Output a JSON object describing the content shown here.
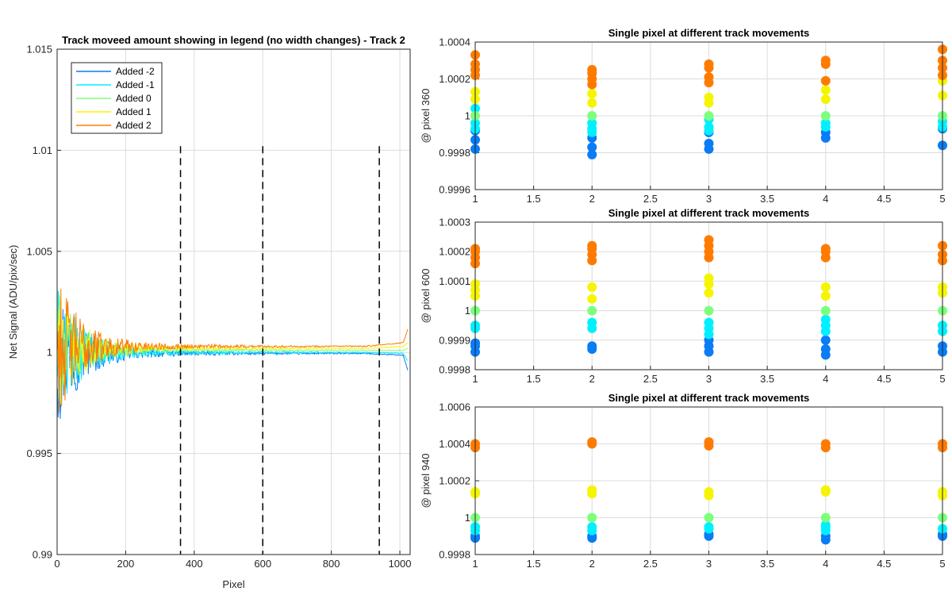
{
  "chart_data": [
    {
      "type": "line",
      "title": "Track moveed amount showing in legend (no width changes) - Track 2",
      "xlabel": "Pixel",
      "ylabel": "Net Signal (ADU/pix/sec)",
      "xlim": [
        0,
        1030
      ],
      "ylim": [
        0.99,
        1.015
      ],
      "x_ticks": [
        0,
        200,
        400,
        600,
        800,
        1000
      ],
      "y_ticks": [
        0.99,
        0.995,
        1,
        1.005,
        1.01,
        1.015
      ],
      "x_tick_labels": [
        "0",
        "200",
        "400",
        "600",
        "800",
        "1000"
      ],
      "y_tick_labels": [
        "0.99",
        "0.995",
        "1",
        "1.005",
        "1.01",
        "1.015"
      ],
      "grid": true,
      "legend_position": "top-left",
      "vertical_markers": [
        360,
        600,
        940
      ],
      "series": [
        {
          "name": "Added -2",
          "color": "#0A7CF5",
          "noise_amp": 0.0036,
          "settle_level": 0.99995,
          "end_level": 0.99985,
          "end_dip": -0.0008
        },
        {
          "name": "Added -1",
          "color": "#00F0FF",
          "noise_amp": 0.0032,
          "settle_level": 1.0,
          "end_level": 0.99995,
          "end_dip": -0.0004
        },
        {
          "name": "Added 0",
          "color": "#7CFF7C",
          "noise_amp": 0.0028,
          "settle_level": 1.0001,
          "end_level": 1.0001,
          "end_dip": 0.0001
        },
        {
          "name": "Added 1",
          "color": "#F5F500",
          "noise_amp": 0.003,
          "settle_level": 1.0002,
          "end_level": 1.0003,
          "end_dip": 0.0002
        },
        {
          "name": "Added 2",
          "color": "#FF7B00",
          "noise_amp": 0.0034,
          "settle_level": 1.0003,
          "end_level": 1.0005,
          "end_dip": 0.0007
        }
      ]
    },
    {
      "type": "scatter",
      "title": "Single pixel at different track movements",
      "ylabel": "@ pixel 360",
      "xlim": [
        1,
        5
      ],
      "ylim": [
        0.9996,
        1.0004
      ],
      "x_ticks": [
        1,
        1.5,
        2,
        2.5,
        3,
        3.5,
        4,
        4.5,
        5
      ],
      "x_tick_labels": [
        "1",
        "1.5",
        "2",
        "2.5",
        "3",
        "3.5",
        "4",
        "4.5",
        "5"
      ],
      "y_ticks": [
        0.9996,
        0.9998,
        1,
        1.0002,
        1.0004
      ],
      "y_tick_labels": [
        "0.9996",
        "0.9998",
        "1",
        "1.0002",
        "1.0004"
      ],
      "grid": true,
      "series": [
        {
          "name": "Added -2",
          "color": "#0A7CF5",
          "points": [
            [
              1,
              0.99982
            ],
            [
              1,
              0.99987
            ],
            [
              1,
              0.99992
            ],
            [
              2,
              0.99979
            ],
            [
              2,
              0.99983
            ],
            [
              2,
              0.99988
            ],
            [
              3,
              0.99982
            ],
            [
              3,
              0.99985
            ],
            [
              3,
              0.99991
            ],
            [
              4,
              0.99988
            ],
            [
              4,
              0.99991
            ],
            [
              5,
              0.99984
            ],
            [
              5,
              0.99993
            ]
          ]
        },
        {
          "name": "Added -1",
          "color": "#00F0FF",
          "points": [
            [
              1,
              1.00004
            ],
            [
              1,
              0.99996
            ],
            [
              1,
              0.99993
            ],
            [
              2,
              0.99996
            ],
            [
              2,
              0.99993
            ],
            [
              2,
              0.99991
            ],
            [
              3,
              0.99998
            ],
            [
              3,
              0.99994
            ],
            [
              3,
              0.99992
            ],
            [
              4,
              0.99996
            ],
            [
              4,
              0.99994
            ],
            [
              5,
              0.99997
            ],
            [
              5,
              0.99994
            ]
          ]
        },
        {
          "name": "Added 0",
          "color": "#7CFF7C",
          "points": [
            [
              1,
              1.0
            ],
            [
              2,
              1.0
            ],
            [
              3,
              1.0
            ],
            [
              4,
              1.0
            ],
            [
              5,
              1.0
            ]
          ]
        },
        {
          "name": "Added 1",
          "color": "#F5F500",
          "points": [
            [
              1,
              1.00013
            ],
            [
              1,
              1.00009
            ],
            [
              2,
              1.00012
            ],
            [
              2,
              1.00007
            ],
            [
              3,
              1.0001
            ],
            [
              3,
              1.00007
            ],
            [
              4,
              1.00014
            ],
            [
              4,
              1.00009
            ],
            [
              5,
              1.00019
            ],
            [
              5,
              1.00011
            ]
          ]
        },
        {
          "name": "Added 2",
          "color": "#FF7B00",
          "points": [
            [
              1,
              1.00033
            ],
            [
              1,
              1.00028
            ],
            [
              1,
              1.00025
            ],
            [
              1,
              1.00022
            ],
            [
              2,
              1.00025
            ],
            [
              2,
              1.00023
            ],
            [
              2,
              1.0002
            ],
            [
              2,
              1.00017
            ],
            [
              3,
              1.00028
            ],
            [
              3,
              1.00026
            ],
            [
              3,
              1.00021
            ],
            [
              3,
              1.00018
            ],
            [
              4,
              1.0003
            ],
            [
              4,
              1.00028
            ],
            [
              4,
              1.00019
            ],
            [
              5,
              1.00036
            ],
            [
              5,
              1.0003
            ],
            [
              5,
              1.00026
            ],
            [
              5,
              1.00022
            ]
          ]
        }
      ]
    },
    {
      "type": "scatter",
      "title": "Single pixel at different track movements",
      "ylabel": "@ pixel 600",
      "xlim": [
        1,
        5
      ],
      "ylim": [
        0.9998,
        1.0003
      ],
      "x_ticks": [
        1,
        1.5,
        2,
        2.5,
        3,
        3.5,
        4,
        4.5,
        5
      ],
      "x_tick_labels": [
        "1",
        "1.5",
        "2",
        "2.5",
        "3",
        "3.5",
        "4",
        "4.5",
        "5"
      ],
      "y_ticks": [
        0.9998,
        0.9999,
        1,
        1.0001,
        1.0002,
        1.0003
      ],
      "y_tick_labels": [
        "0.9998",
        "0.9999",
        "1",
        "1.0001",
        "1.0002",
        "1.0003"
      ],
      "grid": true,
      "series": [
        {
          "name": "Added -2",
          "color": "#0A7CF5",
          "points": [
            [
              1,
              0.99986
            ],
            [
              1,
              0.99988
            ],
            [
              1,
              0.99989
            ],
            [
              2,
              0.99987
            ],
            [
              2,
              0.99988
            ],
            [
              3,
              0.99986
            ],
            [
              3,
              0.99988
            ],
            [
              3,
              0.9999
            ],
            [
              4,
              0.99985
            ],
            [
              4,
              0.99987
            ],
            [
              4,
              0.9999
            ],
            [
              5,
              0.99986
            ],
            [
              5,
              0.99988
            ]
          ]
        },
        {
          "name": "Added -1",
          "color": "#00F0FF",
          "points": [
            [
              1,
              0.99994
            ],
            [
              1,
              0.99995
            ],
            [
              2,
              0.99994
            ],
            [
              2,
              0.99996
            ],
            [
              3,
              0.99992
            ],
            [
              3,
              0.99994
            ],
            [
              3,
              0.99996
            ],
            [
              4,
              0.99993
            ],
            [
              4,
              0.99995
            ],
            [
              4,
              0.99997
            ],
            [
              5,
              0.99993
            ],
            [
              5,
              0.99995
            ]
          ]
        },
        {
          "name": "Added 0",
          "color": "#7CFF7C",
          "points": [
            [
              1,
              1.0
            ],
            [
              2,
              1.0
            ],
            [
              3,
              1.0
            ],
            [
              4,
              1.0
            ],
            [
              5,
              1.0
            ]
          ]
        },
        {
          "name": "Added 1",
          "color": "#F5F500",
          "points": [
            [
              1,
              1.00005
            ],
            [
              1,
              1.00007
            ],
            [
              1,
              1.00009
            ],
            [
              2,
              1.00004
            ],
            [
              2,
              1.00008
            ],
            [
              3,
              1.00006
            ],
            [
              3,
              1.00009
            ],
            [
              3,
              1.00011
            ],
            [
              4,
              1.00005
            ],
            [
              4,
              1.00008
            ],
            [
              5,
              1.00006
            ],
            [
              5,
              1.00008
            ]
          ]
        },
        {
          "name": "Added 2",
          "color": "#FF7B00",
          "points": [
            [
              1,
              1.00016
            ],
            [
              1,
              1.00018
            ],
            [
              1,
              1.0002
            ],
            [
              1,
              1.00021
            ],
            [
              2,
              1.00017
            ],
            [
              2,
              1.00019
            ],
            [
              2,
              1.00021
            ],
            [
              2,
              1.00022
            ],
            [
              3,
              1.00018
            ],
            [
              3,
              1.0002
            ],
            [
              3,
              1.00022
            ],
            [
              3,
              1.00024
            ],
            [
              4,
              1.00018
            ],
            [
              4,
              1.0002
            ],
            [
              4,
              1.00021
            ],
            [
              5,
              1.00017
            ],
            [
              5,
              1.00019
            ],
            [
              5,
              1.00022
            ]
          ]
        }
      ]
    },
    {
      "type": "scatter",
      "title": "Single pixel at different track movements",
      "ylabel": "@ pixel 940",
      "xlim": [
        1,
        5
      ],
      "ylim": [
        0.9998,
        1.0006
      ],
      "x_ticks": [
        1,
        1.5,
        2,
        2.5,
        3,
        3.5,
        4,
        4.5,
        5
      ],
      "x_tick_labels": [
        "1",
        "1.5",
        "2",
        "2.5",
        "3",
        "3.5",
        "4",
        "4.5",
        "5"
      ],
      "y_ticks": [
        0.9998,
        1,
        1.0002,
        1.0004,
        1.0006
      ],
      "y_tick_labels": [
        "0.9998",
        "1",
        "1.0002",
        "1.0004",
        "1.0006"
      ],
      "grid": true,
      "series": [
        {
          "name": "Added -2",
          "color": "#0A7CF5",
          "points": [
            [
              1,
              0.99989
            ],
            [
              1,
              0.9999
            ],
            [
              2,
              0.99989
            ],
            [
              2,
              0.9999
            ],
            [
              3,
              0.9999
            ],
            [
              3,
              0.99991
            ],
            [
              4,
              0.99988
            ],
            [
              4,
              0.9999
            ],
            [
              5,
              0.9999
            ],
            [
              5,
              0.99991
            ]
          ]
        },
        {
          "name": "Added -1",
          "color": "#00F0FF",
          "points": [
            [
              1,
              0.99993
            ],
            [
              1,
              0.99995
            ],
            [
              2,
              0.99993
            ],
            [
              2,
              0.99995
            ],
            [
              3,
              0.99994
            ],
            [
              3,
              0.99995
            ],
            [
              4,
              0.99993
            ],
            [
              4,
              0.99995
            ],
            [
              4,
              0.99996
            ],
            [
              5,
              0.99994
            ]
          ]
        },
        {
          "name": "Added 0",
          "color": "#7CFF7C",
          "points": [
            [
              1,
              1.0
            ],
            [
              2,
              1.0
            ],
            [
              3,
              1.0
            ],
            [
              4,
              1.0
            ],
            [
              5,
              1.0
            ]
          ]
        },
        {
          "name": "Added 1",
          "color": "#F5F500",
          "points": [
            [
              1,
              1.00013
            ],
            [
              1,
              1.00014
            ],
            [
              2,
              1.00013
            ],
            [
              2,
              1.00015
            ],
            [
              3,
              1.00012
            ],
            [
              3,
              1.00014
            ],
            [
              4,
              1.00014
            ],
            [
              4,
              1.00015
            ],
            [
              5,
              1.00012
            ],
            [
              5,
              1.00014
            ]
          ]
        },
        {
          "name": "Added 2",
          "color": "#FF7B00",
          "points": [
            [
              1,
              1.00038
            ],
            [
              1,
              1.0004
            ],
            [
              2,
              1.0004
            ],
            [
              2,
              1.00041
            ],
            [
              3,
              1.00039
            ],
            [
              3,
              1.00041
            ],
            [
              4,
              1.00038
            ],
            [
              4,
              1.0004
            ],
            [
              5,
              1.00038
            ],
            [
              5,
              1.0004
            ]
          ]
        }
      ]
    }
  ]
}
